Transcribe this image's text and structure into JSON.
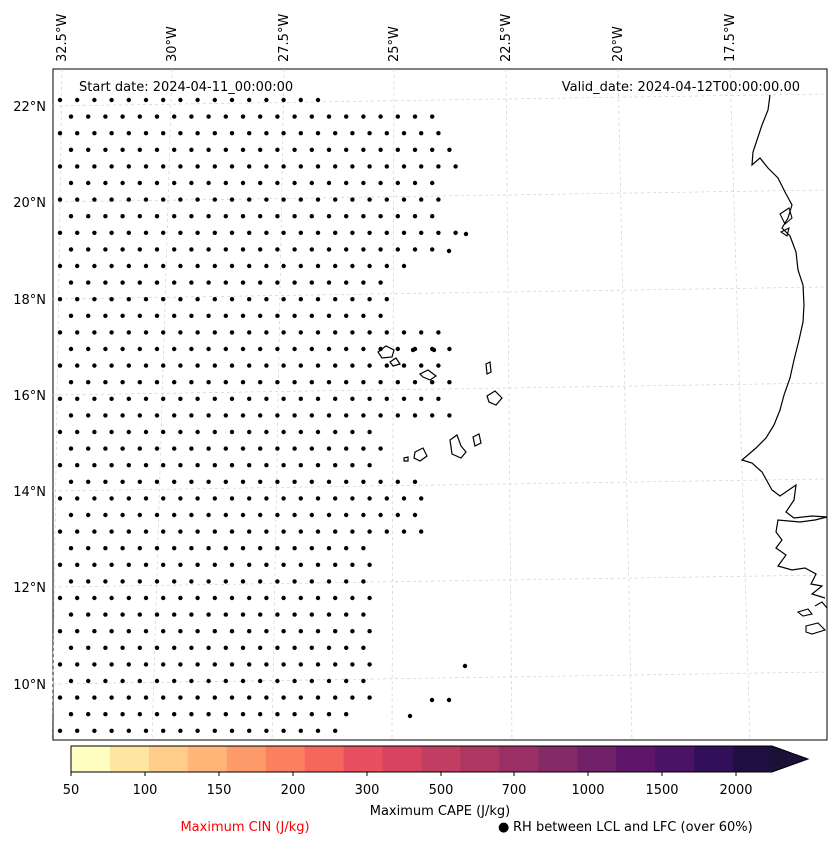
{
  "map": {
    "start_date": "Start date: 2024-04-11_00:00:00",
    "valid_date": "Valid_date: 2024-04-12T00:00:00.00",
    "lon_labels": [
      "32.5°W",
      "30°W",
      "27.5°W",
      "25°W",
      "22.5°W",
      "20°W",
      "17.5°W"
    ],
    "lat_labels": [
      "22°N",
      "20°N",
      "18°N",
      "16°N",
      "14°N",
      "12°N",
      "10°N"
    ]
  },
  "colorbar": {
    "title": "Maximum CAPE (J/kg)",
    "ticks": [
      "50",
      "100",
      "150",
      "200",
      "300",
      "500",
      "700",
      "1000",
      "1500",
      "2000"
    ],
    "colors": [
      "#fffdbf",
      "#fee5a0",
      "#fecd89",
      "#feb577",
      "#fd9b6b",
      "#fb8060",
      "#f5665c",
      "#e8505f",
      "#d6445f",
      "#c23d62",
      "#ae3663",
      "#992f65",
      "#852a67",
      "#722067",
      "#5e1768",
      "#4a1366",
      "#320f59",
      "#1e0f40"
    ],
    "extend_color": "#1b1036"
  },
  "legend": {
    "cin_label": "Maximum CIN (J/kg)",
    "cin_color": "#ff0000",
    "rh_marker": "●",
    "rh_label": "RH between LCL and LFC (over 60%)"
  }
}
